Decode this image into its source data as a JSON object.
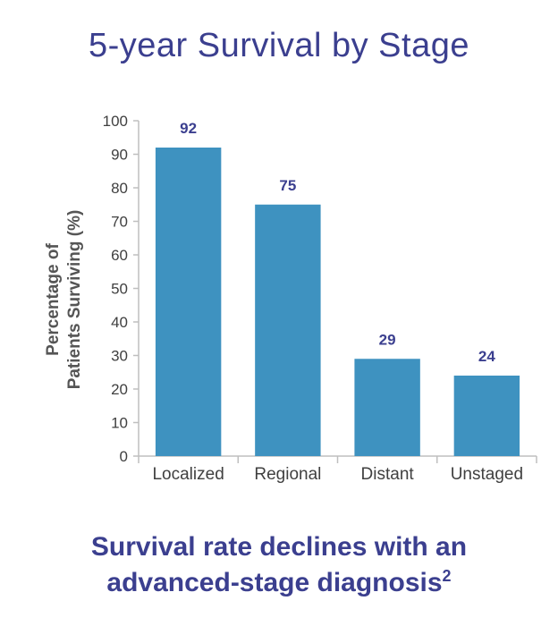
{
  "chart_data": {
    "type": "bar",
    "title": "5-year Survival by Stage",
    "categories": [
      "Localized",
      "Regional",
      "Distant",
      "Unstaged"
    ],
    "values": [
      92,
      75,
      29,
      24
    ],
    "data_labels": [
      "92",
      "75",
      "29",
      "24"
    ],
    "xlabel": "",
    "ylabel_line1": "Percentage of",
    "ylabel_line2": "Patients Surviving (%)",
    "ylim": [
      0,
      100
    ],
    "yticks": [
      0,
      10,
      20,
      30,
      40,
      50,
      60,
      70,
      80,
      90,
      100
    ],
    "grid": false,
    "colors": {
      "bar": "#3e92c0",
      "title": "#3b3f8f",
      "label": "#3b3f8f",
      "axis": "#bfbfbf",
      "tick_text": "#404040"
    }
  },
  "caption": {
    "line1": "Survival rate declines with an",
    "line2": "advanced-stage diagnosis",
    "superscript": "2"
  }
}
